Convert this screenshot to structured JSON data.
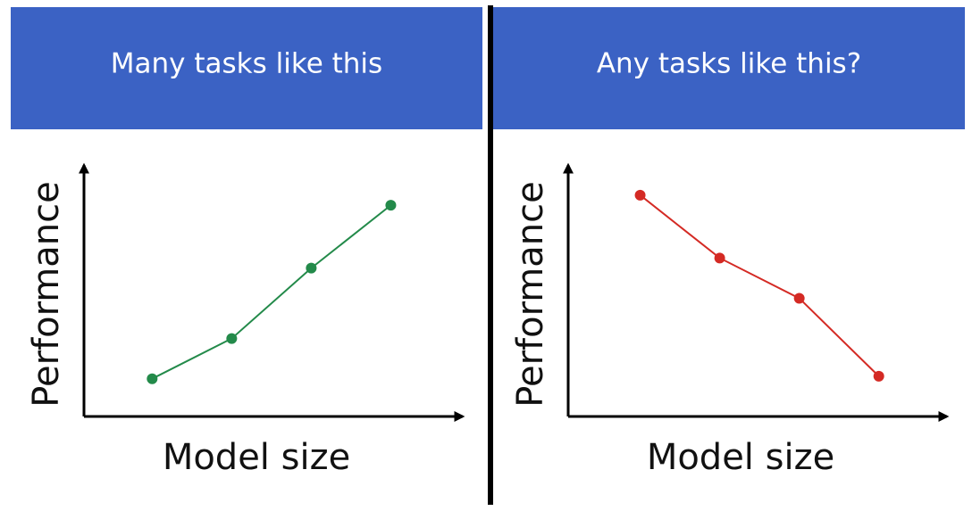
{
  "chart_data": [
    {
      "type": "line",
      "title": "Many tasks like this",
      "xlabel": "Model size",
      "ylabel": "Performance",
      "x": [
        18,
        39,
        60,
        81
      ],
      "values": [
        15,
        31,
        59,
        84
      ],
      "color": "#238a4a",
      "xlim": [
        0,
        100
      ],
      "ylim": [
        0,
        100
      ]
    },
    {
      "type": "line",
      "title": "Any tasks like this?",
      "xlabel": "Model size",
      "ylabel": "Performance",
      "x": [
        19,
        40,
        61,
        82
      ],
      "values": [
        88,
        63,
        47,
        16
      ],
      "color": "#d42a24",
      "xlim": [
        0,
        100
      ],
      "ylim": [
        0,
        100
      ]
    }
  ]
}
